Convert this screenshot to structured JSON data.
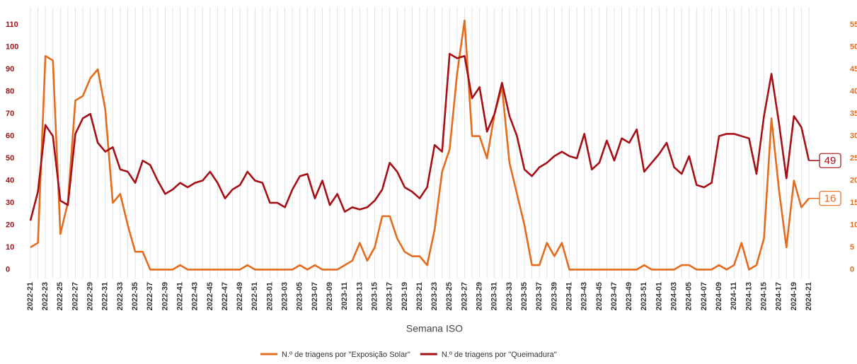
{
  "chart_data": {
    "type": "line",
    "x_label": "Semana ISO",
    "categories": [
      "2022-21",
      null,
      "2022-23",
      null,
      "2022-25",
      null,
      "2022-27",
      null,
      "2022-29",
      null,
      "2022-31",
      null,
      "2022-33",
      null,
      "2022-35",
      null,
      "2022-37",
      null,
      "2022-39",
      null,
      "2022-41",
      null,
      "2022-43",
      null,
      "2022-45",
      null,
      "2022-47",
      null,
      "2022-49",
      null,
      "2022-51",
      null,
      "2023-01",
      null,
      "2023-03",
      null,
      "2023-05",
      null,
      "2023-07",
      null,
      "2023-09",
      null,
      "2023-11",
      null,
      "2023-13",
      null,
      "2023-15",
      null,
      "2023-17",
      null,
      "2023-19",
      null,
      "2023-21",
      null,
      "2023-23",
      null,
      "2023-25",
      null,
      "2023-27",
      null,
      "2023-29",
      null,
      "2023-31",
      null,
      "2023-33",
      null,
      "2023-35",
      null,
      "2023-37",
      null,
      "2023-39",
      null,
      "2023-41",
      null,
      "2023-43",
      null,
      "2023-45",
      null,
      "2023-47",
      null,
      "2023-49",
      null,
      "2023-51",
      null,
      "2024-01",
      null,
      "2024-03",
      null,
      "2024-05",
      null,
      "2024-07",
      null,
      "2024-09",
      null,
      "2024-11",
      null,
      "2024-13",
      null,
      "2024-15",
      null,
      "2024-17",
      null,
      "2024-19",
      null,
      "2024-21"
    ],
    "series": [
      {
        "name": "N.º de triagens por \"Exposição Solar\"",
        "color": "#e36c1e",
        "axis": "y2",
        "values": [
          5,
          6,
          48,
          47,
          8,
          15,
          38,
          39,
          43,
          45,
          36,
          15,
          17,
          10,
          4,
          4,
          0,
          0,
          0,
          0,
          1,
          0,
          0,
          0,
          0,
          0,
          0,
          0,
          0,
          1,
          0,
          0,
          0,
          0,
          0,
          0,
          1,
          0,
          1,
          0,
          0,
          0,
          1,
          2,
          6,
          2,
          5,
          12,
          12,
          7,
          4,
          3,
          3,
          1,
          9,
          22,
          27,
          44,
          56,
          30,
          30,
          25,
          35,
          41,
          24,
          17,
          10,
          1,
          1,
          6,
          3,
          6,
          0,
          0,
          0,
          0,
          0,
          0,
          0,
          0,
          0,
          0,
          1,
          0,
          0,
          0,
          0,
          1,
          1,
          0,
          0,
          0,
          1,
          0,
          1,
          6,
          0,
          1,
          7,
          34,
          18,
          5,
          20,
          14,
          16
        ]
      },
      {
        "name": "N.º de triagens por \"Queimadura\"",
        "color": "#a50f15",
        "values": [
          22,
          35,
          65,
          60,
          31,
          29,
          61,
          68,
          70,
          57,
          53,
          55,
          45,
          44,
          39,
          49,
          47,
          40,
          34,
          36,
          39,
          37,
          39,
          40,
          44,
          39,
          32,
          36,
          38,
          44,
          40,
          39,
          30,
          30,
          28,
          36,
          42,
          43,
          32,
          40,
          29,
          34,
          26,
          28,
          27,
          28,
          31,
          36,
          48,
          44,
          37,
          35,
          32,
          37,
          56,
          53,
          97,
          95,
          96,
          77,
          82,
          62,
          70,
          84,
          69,
          60,
          45,
          42,
          46,
          48,
          51,
          53,
          51,
          50,
          61,
          45,
          48,
          58,
          49,
          59,
          57,
          63,
          44,
          48,
          52,
          57,
          46,
          43,
          51,
          38,
          37,
          39,
          60,
          61,
          61,
          60,
          59,
          43,
          69,
          88,
          66,
          41,
          69,
          64,
          49
        ]
      }
    ],
    "ylim": [
      -4,
      118
    ],
    "yticks": [
      0,
      10,
      20,
      30,
      40,
      50,
      60,
      70,
      80,
      90,
      100,
      110
    ],
    "y2lim": [
      -2,
      59
    ],
    "y2ticks": [
      0,
      5,
      10,
      15,
      20,
      25,
      30,
      35,
      40,
      45,
      50,
      55
    ],
    "grid": true
  }
}
